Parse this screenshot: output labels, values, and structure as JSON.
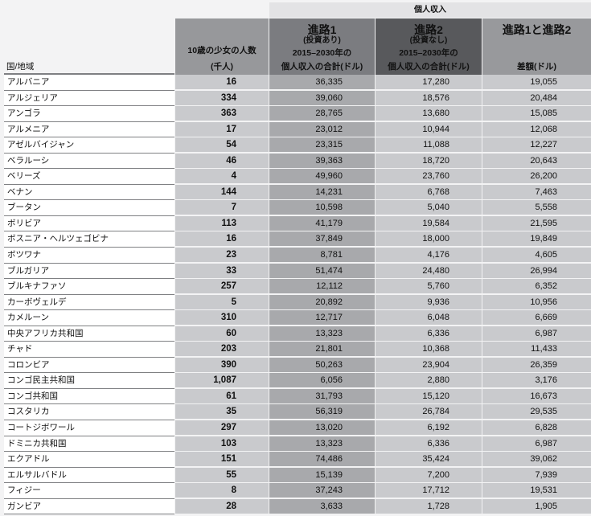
{
  "header": {
    "group_label": "個人収入",
    "country": "国/地域",
    "girls": {
      "line1": "10歳の少女の人数",
      "line2": "(千人)"
    },
    "path1": {
      "title": "進路1",
      "note": "(投資あり)",
      "line1": "2015–2030年の",
      "line2": "個人収入の合計(ドル)"
    },
    "path2": {
      "title": "進路2",
      "note": "(投資なし)",
      "line1": "2015–2030年の",
      "line2": "個人収入の合計(ドル)"
    },
    "diff": {
      "title": "進路1と進路2",
      "sub": "差額(ドル)"
    }
  },
  "colors": {
    "girls_header": "#97989b",
    "path1_header": "#7b7c80",
    "path2_header": "#58595c",
    "path1_cells": "#a8a9ac",
    "cells": "#c9cacd"
  },
  "rows": [
    {
      "country": "アルバニア",
      "girls": "16",
      "path1": "36,335",
      "path2": "17,280",
      "diff": "19,055"
    },
    {
      "country": "アルジェリア",
      "girls": "334",
      "path1": "39,060",
      "path2": "18,576",
      "diff": "20,484"
    },
    {
      "country": "アンゴラ",
      "girls": "363",
      "path1": "28,765",
      "path2": "13,680",
      "diff": "15,085"
    },
    {
      "country": "アルメニア",
      "girls": "17",
      "path1": "23,012",
      "path2": "10,944",
      "diff": "12,068"
    },
    {
      "country": "アゼルバイジャン",
      "girls": "54",
      "path1": "23,315",
      "path2": "11,088",
      "diff": "12,227"
    },
    {
      "country": "ベラルーシ",
      "girls": "46",
      "path1": "39,363",
      "path2": "18,720",
      "diff": "20,643"
    },
    {
      "country": "ベリーズ",
      "girls": "4",
      "path1": "49,960",
      "path2": "23,760",
      "diff": "26,200"
    },
    {
      "country": "ベナン",
      "girls": "144",
      "path1": "14,231",
      "path2": "6,768",
      "diff": "7,463"
    },
    {
      "country": "ブータン",
      "girls": "7",
      "path1": "10,598",
      "path2": "5,040",
      "diff": "5,558"
    },
    {
      "country": "ボリビア",
      "girls": "113",
      "path1": "41,179",
      "path2": "19,584",
      "diff": "21,595"
    },
    {
      "country": "ボスニア・ヘルツェゴビナ",
      "girls": "16",
      "path1": "37,849",
      "path2": "18,000",
      "diff": "19,849"
    },
    {
      "country": "ボツワナ",
      "girls": "23",
      "path1": "8,781",
      "path2": "4,176",
      "diff": "4,605"
    },
    {
      "country": "ブルガリア",
      "girls": "33",
      "path1": "51,474",
      "path2": "24,480",
      "diff": "26,994"
    },
    {
      "country": "ブルキナファソ",
      "girls": "257",
      "path1": "12,112",
      "path2": "5,760",
      "diff": "6,352"
    },
    {
      "country": "カーボヴェルデ",
      "girls": "5",
      "path1": "20,892",
      "path2": "9,936",
      "diff": "10,956"
    },
    {
      "country": "カメルーン",
      "girls": "310",
      "path1": "12,717",
      "path2": "6,048",
      "diff": "6,669"
    },
    {
      "country": "中央アフリカ共和国",
      "girls": "60",
      "path1": "13,323",
      "path2": "6,336",
      "diff": "6,987"
    },
    {
      "country": "チャド",
      "girls": "203",
      "path1": "21,801",
      "path2": "10,368",
      "diff": "11,433"
    },
    {
      "country": "コロンビア",
      "girls": "390",
      "path1": "50,263",
      "path2": "23,904",
      "diff": "26,359"
    },
    {
      "country": "コンゴ民主共和国",
      "girls": "1,087",
      "path1": "6,056",
      "path2": "2,880",
      "diff": "3,176"
    },
    {
      "country": "コンゴ共和国",
      "girls": "61",
      "path1": "31,793",
      "path2": "15,120",
      "diff": "16,673"
    },
    {
      "country": "コスタリカ",
      "girls": "35",
      "path1": "56,319",
      "path2": "26,784",
      "diff": "29,535"
    },
    {
      "country": "コートジボワール",
      "girls": "297",
      "path1": "13,020",
      "path2": "6,192",
      "diff": "6,828"
    },
    {
      "country": "ドミニカ共和国",
      "girls": "103",
      "path1": "13,323",
      "path2": "6,336",
      "diff": "6,987"
    },
    {
      "country": "エクアドル",
      "girls": "151",
      "path1": "74,486",
      "path2": "35,424",
      "diff": "39,062"
    },
    {
      "country": "エルサルバドル",
      "girls": "55",
      "path1": "15,139",
      "path2": "7,200",
      "diff": "7,939"
    },
    {
      "country": "フィジー",
      "girls": "8",
      "path1": "37,243",
      "path2": "17,712",
      "diff": "19,531"
    },
    {
      "country": "ガンビア",
      "girls": "28",
      "path1": "3,633",
      "path2": "1,728",
      "diff": "1,905"
    }
  ]
}
